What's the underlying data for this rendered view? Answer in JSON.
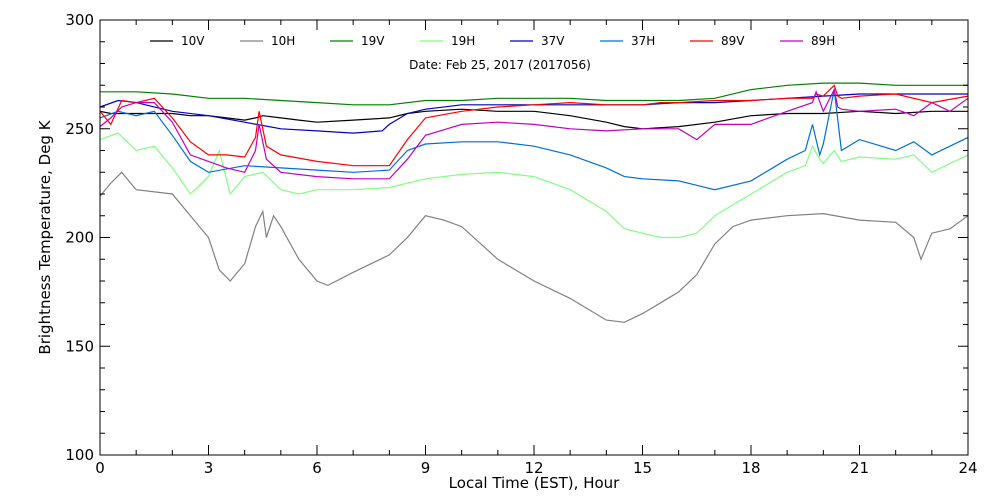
{
  "chart_data": {
    "type": "line",
    "title": "",
    "subtitle": "Date: Feb 25, 2017 (2017056)",
    "xlabel": "Local Time (EST), Hour",
    "ylabel": "Brightness Temperature, Deg K",
    "xlim": [
      0,
      24
    ],
    "ylim": [
      100,
      300
    ],
    "xticks": [
      0,
      3,
      6,
      9,
      12,
      15,
      18,
      21,
      24
    ],
    "yticks": [
      100,
      150,
      200,
      250,
      300
    ],
    "grid": false,
    "legend_position": "top",
    "series": [
      {
        "name": "10V",
        "color": "#000000",
        "x": [
          0,
          0.3,
          0.6,
          1,
          1.5,
          2,
          2.5,
          3,
          3.5,
          4,
          4.3,
          4.5,
          5,
          5.5,
          6,
          7,
          8,
          8.5,
          9,
          10,
          11,
          12,
          13,
          14,
          14.5,
          15,
          16,
          17,
          18,
          19,
          20,
          21,
          22,
          23,
          24
        ],
        "y": [
          258,
          257,
          257,
          257,
          257,
          257,
          256,
          256,
          255,
          254,
          255,
          256,
          255,
          254,
          253,
          254,
          255,
          257,
          258,
          259,
          258,
          258,
          256,
          253,
          251,
          250,
          251,
          253,
          256,
          257,
          257,
          258,
          257,
          258,
          258
        ]
      },
      {
        "name": "10H",
        "color": "#808080",
        "x": [
          0,
          0.3,
          0.6,
          1,
          2,
          2.5,
          3,
          3.3,
          3.6,
          4,
          4.3,
          4.5,
          4.6,
          4.8,
          5,
          5.5,
          6,
          6.3,
          7,
          8,
          8.5,
          9,
          9.5,
          10,
          11,
          12,
          13,
          14,
          14.5,
          15,
          15.5,
          16,
          16.5,
          17,
          17.5,
          18,
          19,
          20,
          21,
          22,
          22.5,
          22.7,
          22.9,
          23,
          23.5,
          24
        ],
        "y": [
          219,
          225,
          230,
          222,
          220,
          210,
          200,
          185,
          180,
          188,
          205,
          212,
          200,
          210,
          205,
          190,
          180,
          178,
          184,
          192,
          200,
          210,
          208,
          205,
          190,
          180,
          172,
          162,
          161,
          165,
          170,
          175,
          183,
          197,
          205,
          208,
          210,
          211,
          208,
          207,
          200,
          190,
          198,
          202,
          204,
          210
        ]
      },
      {
        "name": "19V",
        "color": "#008000",
        "x": [
          0,
          1,
          2,
          3,
          4,
          5,
          6,
          7,
          8,
          9,
          10,
          11,
          12,
          13,
          14,
          15,
          16,
          17,
          18,
          19,
          20,
          21,
          22,
          23,
          24
        ],
        "y": [
          267,
          267,
          266,
          264,
          264,
          263,
          262,
          261,
          261,
          263,
          263,
          264,
          264,
          264,
          263,
          263,
          263,
          264,
          268,
          270,
          271,
          271,
          270,
          270,
          270
        ]
      },
      {
        "name": "19H",
        "color": "#80ff80",
        "x": [
          0,
          0.5,
          1,
          1.5,
          2,
          2.5,
          3,
          3.3,
          3.6,
          4,
          4.5,
          5,
          5.5,
          6,
          7,
          8,
          8.5,
          9,
          10,
          11,
          12,
          13,
          14,
          14.5,
          15,
          15.5,
          16,
          16.5,
          17,
          18,
          19,
          19.5,
          19.7,
          19.9,
          20,
          20.3,
          20.5,
          21,
          22,
          22.5,
          23,
          23.5,
          24
        ],
        "y": [
          245,
          248,
          240,
          242,
          232,
          220,
          228,
          240,
          220,
          228,
          230,
          222,
          220,
          222,
          222,
          223,
          225,
          227,
          229,
          230,
          228,
          222,
          212,
          204,
          202,
          200,
          200,
          202,
          210,
          220,
          230,
          233,
          242,
          236,
          234,
          240,
          235,
          237,
          236,
          238,
          230,
          234,
          238
        ]
      },
      {
        "name": "37V",
        "color": "#0000c0",
        "x": [
          0,
          0.5,
          1,
          2,
          3,
          4,
          5,
          6,
          7,
          7.8,
          8,
          8.5,
          9,
          10,
          11,
          12,
          13,
          14,
          15,
          16,
          17,
          18,
          19,
          20,
          21,
          22,
          23,
          24
        ],
        "y": [
          260,
          263,
          262,
          258,
          256,
          253,
          250,
          249,
          248,
          249,
          252,
          257,
          259,
          261,
          261,
          261,
          261,
          261,
          261,
          262,
          262,
          263,
          264,
          265,
          266,
          266,
          266,
          266
        ]
      },
      {
        "name": "37H",
        "color": "#0070d0",
        "x": [
          0,
          0.5,
          1,
          1.5,
          2,
          2.5,
          3,
          4,
          5,
          6,
          7,
          8,
          8.5,
          9,
          10,
          11,
          12,
          13,
          14,
          14.5,
          15,
          16,
          16.5,
          17,
          18,
          19,
          19.5,
          19.7,
          19.9,
          20,
          20.3,
          20.5,
          21,
          22,
          22.5,
          23,
          23.5,
          24
        ],
        "y": [
          255,
          258,
          256,
          258,
          247,
          235,
          230,
          233,
          232,
          231,
          230,
          231,
          240,
          243,
          244,
          244,
          242,
          238,
          232,
          228,
          227,
          226,
          224,
          222,
          226,
          236,
          240,
          252,
          238,
          243,
          268,
          240,
          245,
          240,
          244,
          238,
          242,
          246
        ]
      },
      {
        "name": "89V",
        "color": "#ff0000",
        "x": [
          0,
          0.3,
          0.6,
          1,
          1.5,
          2,
          2.5,
          3,
          3.5,
          4,
          4.3,
          4.4,
          4.6,
          5,
          6,
          7,
          8,
          8.5,
          9,
          10,
          11,
          12,
          13,
          14,
          15,
          15.5,
          16,
          17,
          18,
          19,
          19.7,
          19.8,
          20,
          20.3,
          20.4,
          20.5,
          21,
          22,
          23,
          24
        ],
        "y": [
          258,
          252,
          263,
          262,
          264,
          255,
          244,
          238,
          238,
          237,
          246,
          258,
          242,
          238,
          235,
          233,
          233,
          245,
          255,
          258,
          260,
          261,
          262,
          261,
          261,
          262,
          262,
          263,
          263,
          264,
          264,
          266,
          265,
          270,
          265,
          264,
          265,
          266,
          262,
          265
        ]
      },
      {
        "name": "89H",
        "color": "#c000c0",
        "x": [
          0,
          0.3,
          0.6,
          1,
          1.5,
          2,
          2.5,
          3,
          3.5,
          4,
          4.3,
          4.4,
          4.6,
          5,
          6,
          7,
          8,
          8.5,
          9,
          10,
          11,
          12,
          13,
          14,
          15,
          16,
          16.5,
          17,
          18,
          19,
          19.7,
          19.8,
          20,
          20.3,
          20.4,
          20.5,
          21,
          22,
          22.5,
          23,
          23.5,
          24
        ],
        "y": [
          251,
          255,
          260,
          262,
          262,
          253,
          238,
          235,
          232,
          230,
          240,
          252,
          236,
          230,
          228,
          227,
          227,
          236,
          247,
          252,
          253,
          252,
          250,
          249,
          250,
          250,
          245,
          252,
          252,
          258,
          262,
          267,
          258,
          268,
          260,
          259,
          258,
          259,
          256,
          262,
          258,
          264
        ]
      }
    ]
  }
}
